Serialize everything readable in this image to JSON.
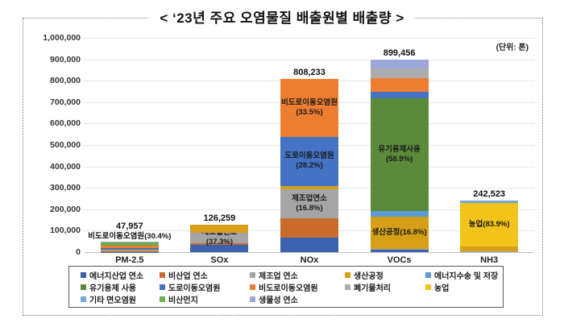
{
  "title": "< ‘23년 주요 오염물질 배출원별 배출량 >",
  "unit_label": "(단위: 톤)",
  "chart_data": {
    "type": "bar",
    "stacked": true,
    "grid": true,
    "legend_position": "bottom-box",
    "categories": [
      "PM-2.5",
      "SOx",
      "NOx",
      "VOCs",
      "NH3"
    ],
    "totals": [
      47957,
      126259,
      808233,
      899456,
      242523
    ],
    "total_labels": [
      "47,957",
      "126,259",
      "808,233",
      "899,456",
      "242,523"
    ],
    "above_bar_labels": [
      "비도로이동오염원(30.4%)",
      "",
      "",
      "",
      ""
    ],
    "ylim": [
      0,
      1000000
    ],
    "ytick_step": 100000,
    "ytick_labels": [
      "0",
      "100,000",
      "200,000",
      "300,000",
      "400,000",
      "500,000",
      "600,000",
      "700,000",
      "800,000",
      "900,000",
      "1,000,000"
    ],
    "series": [
      {
        "name": "에너지산업 연소",
        "color": "#3A62AE",
        "values": [
          1500,
          34664,
          66000,
          10000,
          0
        ]
      },
      {
        "name": "비산업 연소",
        "color": "#C96B2D",
        "values": [
          3500,
          8000,
          91771,
          0,
          0
        ]
      },
      {
        "name": "제조업 연소",
        "color": "#A5A5A5",
        "values": [
          6000,
          47095,
          135783,
          4000,
          2000
        ],
        "segment_labels": [
          null,
          "제조업연소(37.3%)",
          "제조업연소\n(16.8%)",
          null,
          null
        ]
      },
      {
        "name": "생산공정",
        "color": "#D5A017",
        "values": [
          1000,
          36500,
          16000,
          151108,
          24000
        ],
        "segment_labels": [
          null,
          null,
          null,
          "생산공정(16.8%)",
          null
        ]
      },
      {
        "name": "에너지수송 및 저장",
        "color": "#5B9BD5",
        "values": [
          0,
          0,
          0,
          25000,
          0
        ]
      },
      {
        "name": "유기용제 사용",
        "color": "#5A8A3A",
        "values": [
          0,
          0,
          0,
          529779,
          0
        ],
        "segment_labels": [
          null,
          null,
          null,
          "유기용제사용\n(58.9%)",
          null
        ]
      },
      {
        "name": "도로이동오염원",
        "color": "#4472C4",
        "values": [
          5500,
          0,
          227921,
          30000,
          0
        ],
        "segment_labels": [
          null,
          null,
          "도로이동오염원\n(28.2%)",
          null,
          null
        ]
      },
      {
        "name": "비도로이동오염원",
        "color": "#ED7D31",
        "values": [
          14579,
          0,
          270758,
          63000,
          0
        ],
        "segment_labels": [
          null,
          null,
          "비도로이동오염원\n(33.5%)",
          null,
          null
        ]
      },
      {
        "name": "폐기물처리",
        "color": "#ACACAC",
        "values": [
          0,
          0,
          0,
          45000,
          0
        ]
      },
      {
        "name": "농업",
        "color": "#F2C31B",
        "values": [
          0,
          0,
          0,
          0,
          203477
        ],
        "segment_labels": [
          null,
          null,
          null,
          null,
          "농업(83.9%)"
        ]
      },
      {
        "name": "기타 면오염원",
        "color": "#74A9D8",
        "values": [
          0,
          0,
          0,
          0,
          13046
        ]
      },
      {
        "name": "비산먼지",
        "color": "#70AD47",
        "values": [
          12000,
          0,
          0,
          0,
          0
        ]
      },
      {
        "name": "생물성 연소",
        "color": "#9BA7D9",
        "values": [
          3878,
          0,
          0,
          41569,
          0
        ]
      }
    ]
  }
}
